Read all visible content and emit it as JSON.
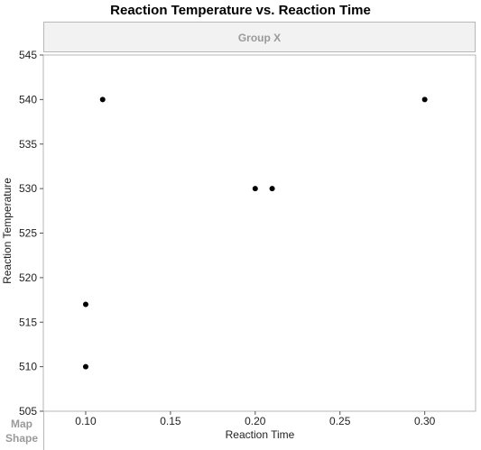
{
  "chart_data": {
    "type": "scatter",
    "title": "Reaction Temperature vs. Reaction Time",
    "group_label": "Group X",
    "legend_label": "Map Shape",
    "xlabel": "Reaction Time",
    "ylabel": "Reaction Temperature",
    "xlim": [
      0.075,
      0.33
    ],
    "ylim": [
      505,
      545
    ],
    "xticks": [
      0.1,
      0.15,
      0.2,
      0.25,
      0.3
    ],
    "xtick_labels": [
      "0.10",
      "0.15",
      "0.20",
      "0.25",
      "0.30"
    ],
    "yticks": [
      505,
      510,
      515,
      520,
      525,
      530,
      535,
      540,
      545
    ],
    "ytick_labels": [
      "505",
      "510",
      "515",
      "520",
      "525",
      "530",
      "535",
      "540",
      "545"
    ],
    "grid": false,
    "points": [
      {
        "x": 0.1,
        "y": 510
      },
      {
        "x": 0.1,
        "y": 517
      },
      {
        "x": 0.11,
        "y": 540
      },
      {
        "x": 0.2,
        "y": 530
      },
      {
        "x": 0.21,
        "y": 530
      },
      {
        "x": 0.3,
        "y": 540
      }
    ],
    "marker_color": "#000000"
  }
}
